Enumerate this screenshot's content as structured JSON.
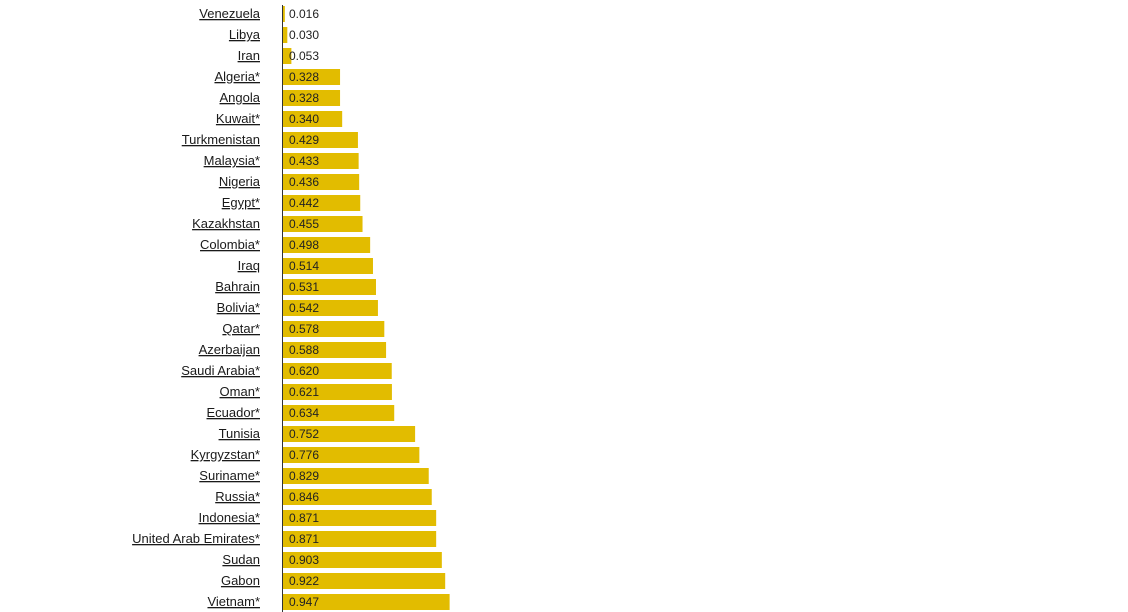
{
  "chart_data": {
    "type": "bar",
    "orientation": "horizontal",
    "title": "",
    "xlabel": "",
    "ylabel": "",
    "xlim": [
      0,
      3.1
    ],
    "grid": false,
    "legend": "none",
    "bar_color": "#e2bc00",
    "categories": [
      "Venezuela",
      "Libya",
      "Iran",
      "Algeria*",
      "Angola",
      "Kuwait*",
      "Turkmenistan",
      "Malaysia*",
      "Nigeria",
      "Egypt*",
      "Kazakhstan",
      "Colombia*",
      "Iraq",
      "Bahrain",
      "Bolivia*",
      "Qatar*",
      "Azerbaijan",
      "Saudi Arabia*",
      "Oman*",
      "Ecuador*",
      "Tunisia",
      "Kyrgyzstan*",
      "Suriname*",
      "Russia*",
      "Indonesia*",
      "United Arab Emirates*",
      "Sudan",
      "Gabon",
      "Vietnam*"
    ],
    "values": [
      0.016,
      0.03,
      0.053,
      0.328,
      0.328,
      0.34,
      0.429,
      0.433,
      0.436,
      0.442,
      0.455,
      0.498,
      0.514,
      0.531,
      0.542,
      0.578,
      0.588,
      0.62,
      0.621,
      0.634,
      0.752,
      0.776,
      0.829,
      0.846,
      0.871,
      0.871,
      0.903,
      0.922,
      0.947
    ],
    "value_labels": [
      "0.016",
      "0.030",
      "0.053",
      "0.328",
      "0.328",
      "0.340",
      "0.429",
      "0.433",
      "0.436",
      "0.442",
      "0.455",
      "0.498",
      "0.514",
      "0.531",
      "0.542",
      "0.578",
      "0.588",
      "0.620",
      "0.621",
      "0.634",
      "0.752",
      "0.776",
      "0.829",
      "0.846",
      "0.871",
      "0.871",
      "0.903",
      "0.922",
      "0.947"
    ]
  }
}
